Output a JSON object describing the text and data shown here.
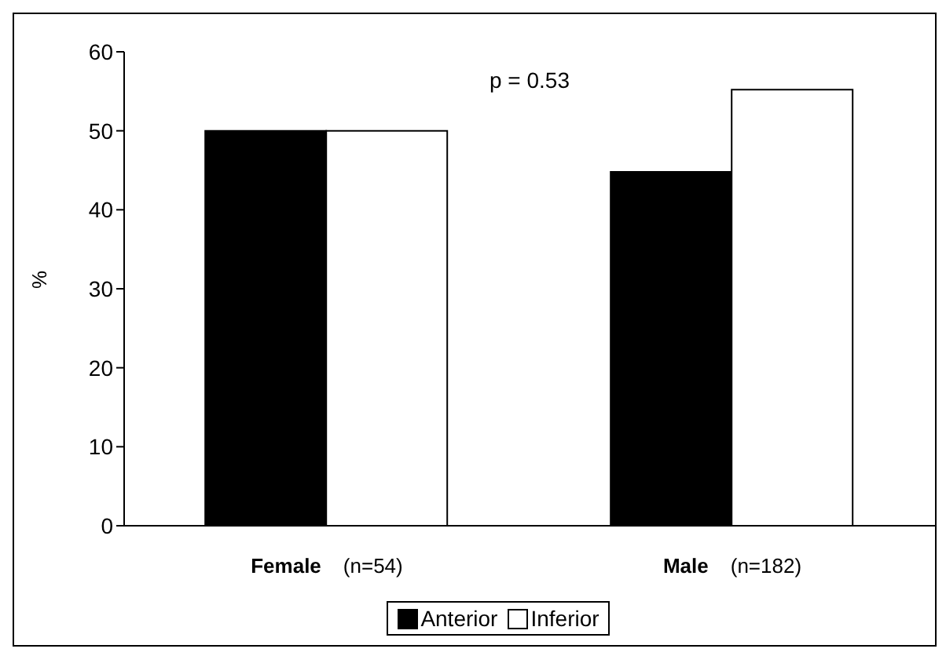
{
  "chart_data": {
    "type": "bar",
    "ylabel": "%",
    "categories": [
      "Female (n=54)",
      "Male (n=182)"
    ],
    "series": [
      {
        "name": "Anterior",
        "color": "#000000",
        "values": [
          50,
          44.8
        ]
      },
      {
        "name": "Inferior",
        "color": "#ffffff",
        "values": [
          50,
          55.2
        ]
      }
    ],
    "ylim": [
      0,
      60
    ],
    "yticks": [
      0,
      10,
      20,
      30,
      40,
      50,
      60
    ],
    "grid": false,
    "legend": "bottom",
    "annotations": [
      "p = 0.53"
    ]
  }
}
